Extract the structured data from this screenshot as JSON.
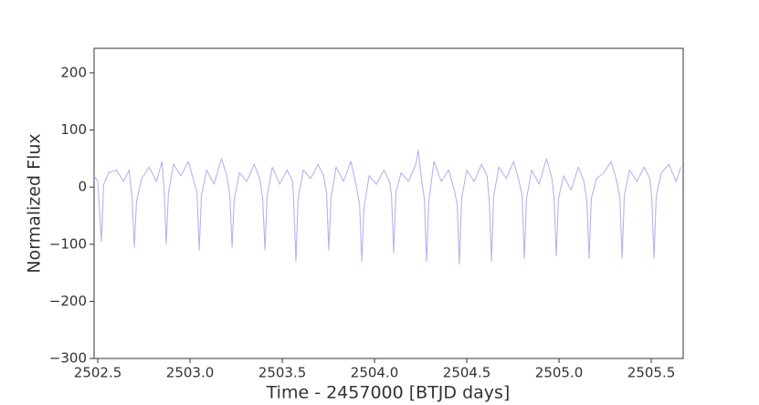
{
  "chart_data": {
    "type": "line",
    "xlabel": "Time - 2457000 [BTJD days]",
    "ylabel": "Normalized Flux",
    "xlim": [
      2502.48,
      2505.673
    ],
    "ylim": [
      -300,
      243
    ],
    "xticks": [
      2502.5,
      {
        "value": 2503,
        "label": "2503.0"
      },
      2503.5,
      {
        "value": 2504,
        "label": "2504.0"
      },
      2504.5,
      {
        "value": 2505,
        "label": "2505.0"
      },
      2505.5
    ],
    "yticks": [
      {
        "value": -300,
        "label": "−300"
      },
      {
        "value": -200,
        "label": "−200"
      },
      {
        "value": -100,
        "label": "−100"
      },
      0,
      100,
      200
    ],
    "grid": false,
    "series": [
      {
        "color": "#b4b4f0",
        "x": [
          2502.48,
          2502.5,
          2502.52,
          2502.532,
          2502.56,
          2502.6,
          2502.64,
          2502.67,
          2502.686,
          2502.698,
          2502.71,
          2502.738,
          2502.778,
          2502.818,
          2502.848,
          2502.859,
          2502.871,
          2502.883,
          2502.911,
          2502.951,
          2502.991,
          2503.021,
          2503.038,
          2503.05,
          2503.062,
          2503.09,
          2503.13,
          2503.17,
          2503.2,
          2503.216,
          2503.228,
          2503.24,
          2503.268,
          2503.308,
          2503.348,
          2503.378,
          2503.394,
          2503.406,
          2503.418,
          2503.446,
          2503.486,
          2503.526,
          2503.556,
          2503.562,
          2503.574,
          2503.586,
          2503.614,
          2503.654,
          2503.694,
          2503.724,
          2503.74,
          2503.752,
          2503.764,
          2503.792,
          2503.832,
          2503.872,
          2503.902,
          2503.919,
          2503.931,
          2503.943,
          2503.971,
          2504.011,
          2504.051,
          2504.081,
          2504.092,
          2504.104,
          2504.116,
          2504.144,
          2504.184,
          2504.224,
          2504.237,
          2504.254,
          2504.27,
          2504.282,
          2504.294,
          2504.322,
          2504.362,
          2504.402,
          2504.432,
          2504.448,
          2504.46,
          2504.472,
          2504.5,
          2504.54,
          2504.58,
          2504.61,
          2504.622,
          2504.634,
          2504.646,
          2504.674,
          2504.714,
          2504.754,
          2504.784,
          2504.8,
          2504.812,
          2504.824,
          2504.852,
          2504.892,
          2504.932,
          2504.962,
          2504.973,
          2504.985,
          2504.997,
          2505.025,
          2505.065,
          2505.105,
          2505.135,
          2505.151,
          2505.163,
          2505.175,
          2505.203,
          2505.243,
          2505.283,
          2505.313,
          2505.33,
          2505.342,
          2505.354,
          2505.382,
          2505.422,
          2505.462,
          2505.492,
          2505.503,
          2505.515,
          2505.527,
          2505.555,
          2505.595,
          2505.635,
          2505.66
        ],
        "values": [
          20,
          10,
          -95,
          5,
          25,
          30,
          10,
          30,
          -20,
          -105,
          -25,
          15,
          35,
          10,
          45,
          0,
          -100,
          -10,
          40,
          20,
          45,
          10,
          -10,
          -110,
          -15,
          30,
          5,
          50,
          20,
          -15,
          -105,
          -20,
          25,
          10,
          40,
          15,
          -20,
          -110,
          -15,
          35,
          5,
          30,
          10,
          -25,
          -130,
          -20,
          30,
          15,
          40,
          20,
          -10,
          -110,
          -20,
          35,
          10,
          45,
          0,
          -30,
          -130,
          -35,
          20,
          5,
          30,
          10,
          -15,
          -115,
          -10,
          25,
          10,
          40,
          65,
          15,
          -20,
          -130,
          -25,
          45,
          10,
          30,
          -5,
          -30,
          -135,
          -20,
          30,
          10,
          40,
          20,
          -25,
          -130,
          -15,
          35,
          15,
          45,
          10,
          -15,
          -125,
          -20,
          30,
          5,
          50,
          15,
          -20,
          -120,
          -20,
          20,
          -5,
          35,
          10,
          -25,
          -125,
          -20,
          15,
          25,
          45,
          10,
          -20,
          -125,
          -15,
          30,
          10,
          35,
          15,
          -20,
          -125,
          -15,
          25,
          40,
          10,
          35
        ]
      }
    ]
  }
}
